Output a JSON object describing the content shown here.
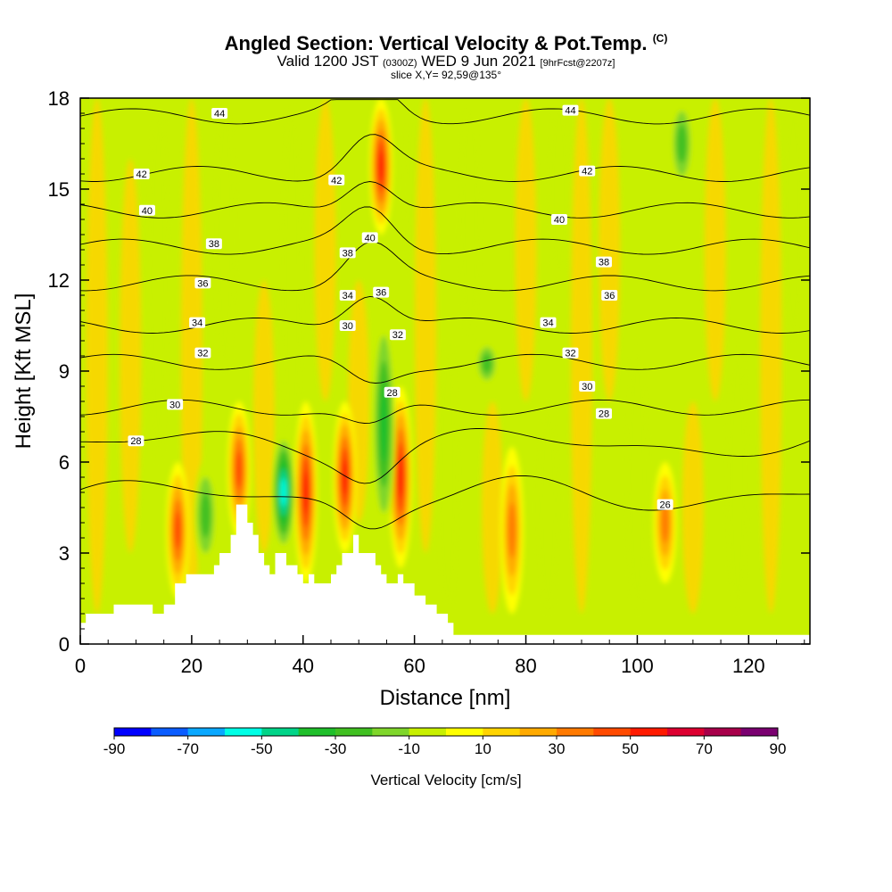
{
  "header": {
    "title_main": "Angled Section: Vertical Velocity & Pot.Temp.",
    "title_mark": "(C)",
    "valid_prefix": "Valid 1200 JST",
    "valid_utc": "(0300Z)",
    "valid_date": "WED 9 Jun 2021",
    "valid_fcst": "[9hrFcst@2207z]",
    "slice": "slice X,Y= 92,59@135°"
  },
  "chart_data": {
    "type": "heatmap",
    "xlabel": "Distance [nm]",
    "ylabel": "Height [Kft MSL]",
    "xlim": [
      0,
      131
    ],
    "ylim": [
      0,
      18
    ],
    "xticks": [
      0,
      20,
      40,
      60,
      80,
      100,
      120
    ],
    "yticks": [
      0,
      3,
      6,
      9,
      12,
      15,
      18
    ],
    "colorbar": {
      "label": "Vertical Velocity [cm/s]",
      "ticks": [
        -90,
        -70,
        -50,
        -30,
        -10,
        10,
        30,
        50,
        70,
        90
      ],
      "colors": [
        "#0000ff",
        "#0a5cff",
        "#0aa8ff",
        "#00ffe6",
        "#00d488",
        "#1fbf2a",
        "#40c020",
        "#7fd62a",
        "#c8f000",
        "#ffff00",
        "#ffd400",
        "#ffaa00",
        "#ff7a00",
        "#ff4a00",
        "#ff1a00",
        "#dd0030",
        "#a8004a",
        "#7a0070"
      ]
    },
    "background_color": "#c8f000",
    "theta_contour_levels": [
      26,
      28,
      30,
      32,
      34,
      36,
      38,
      40,
      42,
      44
    ],
    "theta_contour_labels": [
      {
        "text": "44",
        "x": 25,
        "y": 17.5
      },
      {
        "text": "44",
        "x": 88,
        "y": 17.6
      },
      {
        "text": "42",
        "x": 11,
        "y": 15.5
      },
      {
        "text": "42",
        "x": 46,
        "y": 15.3
      },
      {
        "text": "42",
        "x": 91,
        "y": 15.6
      },
      {
        "text": "40",
        "x": 12,
        "y": 14.3
      },
      {
        "text": "40",
        "x": 52,
        "y": 13.4
      },
      {
        "text": "40",
        "x": 86,
        "y": 14.0
      },
      {
        "text": "38",
        "x": 24,
        "y": 13.2
      },
      {
        "text": "38",
        "x": 48,
        "y": 12.9
      },
      {
        "text": "38",
        "x": 94,
        "y": 12.6
      },
      {
        "text": "36",
        "x": 22,
        "y": 11.9
      },
      {
        "text": "36",
        "x": 54,
        "y": 11.6
      },
      {
        "text": "36",
        "x": 95,
        "y": 11.5
      },
      {
        "text": "34",
        "x": 21,
        "y": 10.6
      },
      {
        "text": "34",
        "x": 48,
        "y": 11.5
      },
      {
        "text": "34",
        "x": 84,
        "y": 10.6
      },
      {
        "text": "32",
        "x": 22,
        "y": 9.6
      },
      {
        "text": "32",
        "x": 57,
        "y": 10.2
      },
      {
        "text": "32",
        "x": 88,
        "y": 9.6
      },
      {
        "text": "30",
        "x": 17,
        "y": 7.9
      },
      {
        "text": "30",
        "x": 48,
        "y": 10.5
      },
      {
        "text": "30",
        "x": 91,
        "y": 8.5
      },
      {
        "text": "28",
        "x": 10,
        "y": 6.7
      },
      {
        "text": "28",
        "x": 56,
        "y": 8.3
      },
      {
        "text": "28",
        "x": 94,
        "y": 7.6
      },
      {
        "text": "26",
        "x": 105,
        "y": 4.6
      }
    ],
    "updraft_cores": [
      {
        "x": 17.5,
        "y0": 1.5,
        "y1": 6.0,
        "value": 55
      },
      {
        "x": 28.5,
        "y0": 3.5,
        "y1": 8.0,
        "value": 50
      },
      {
        "x": 40.5,
        "y0": 2.0,
        "y1": 8.0,
        "value": 60
      },
      {
        "x": 47.5,
        "y0": 3.0,
        "y1": 8.0,
        "value": 60
      },
      {
        "x": 57.5,
        "y0": 2.5,
        "y1": 8.5,
        "value": 65
      },
      {
        "x": 77.5,
        "y0": 1.0,
        "y1": 6.5,
        "value": 45
      },
      {
        "x": 105,
        "y0": 2.0,
        "y1": 6.0,
        "value": 40
      },
      {
        "x": 54,
        "y0": 13.5,
        "y1": 18.0,
        "value": 60
      }
    ],
    "downdraft_cores": [
      {
        "x": 36.5,
        "y0": 3.0,
        "y1": 7.0,
        "value": -60
      },
      {
        "x": 54.5,
        "y0": 3.5,
        "y1": 11.0,
        "value": -45
      },
      {
        "x": 22.5,
        "y0": 2.5,
        "y1": 6.0,
        "value": -30
      },
      {
        "x": 73,
        "y0": 8.5,
        "y1": 10.0,
        "value": -30
      },
      {
        "x": 108,
        "y0": 15.0,
        "y1": 18.0,
        "value": -30
      }
    ],
    "terrain_profile": {
      "x": [
        0,
        1,
        1,
        6,
        6,
        13,
        13,
        15,
        15,
        17,
        17,
        19,
        19,
        24,
        24,
        25,
        25,
        27,
        27,
        28,
        28,
        30,
        30,
        31,
        31,
        32,
        32,
        33,
        33,
        34,
        34,
        35,
        35,
        37,
        37,
        39,
        39,
        40,
        40,
        41,
        41,
        42,
        42,
        45,
        45,
        46,
        46,
        47,
        47,
        49,
        49,
        50,
        50,
        53,
        53,
        54,
        54,
        55,
        55,
        57,
        57,
        58,
        58,
        60,
        60,
        62,
        62,
        64,
        64,
        66,
        66,
        67,
        67,
        70,
        70,
        71,
        71,
        131
      ],
      "y": [
        0.7,
        0.7,
        1.0,
        1.0,
        1.3,
        1.3,
        1.0,
        1.0,
        1.3,
        1.3,
        2.0,
        2.0,
        2.3,
        2.3,
        2.6,
        2.6,
        3.0,
        3.0,
        3.6,
        3.6,
        4.6,
        4.6,
        4.0,
        4.0,
        3.6,
        3.6,
        3.0,
        3.0,
        2.6,
        2.6,
        2.3,
        2.3,
        3.0,
        3.0,
        2.6,
        2.6,
        2.3,
        2.3,
        2.0,
        2.0,
        2.3,
        2.3,
        2.0,
        2.0,
        2.3,
        2.3,
        2.6,
        2.6,
        3.0,
        3.0,
        3.6,
        3.6,
        3.0,
        3.0,
        2.6,
        2.6,
        2.3,
        2.3,
        2.0,
        2.0,
        2.3,
        2.3,
        2.0,
        2.0,
        1.6,
        1.6,
        1.3,
        1.3,
        1.0,
        1.0,
        0.7,
        0.7,
        0.3,
        0.3,
        0.3,
        0.3,
        0.3,
        0.3
      ]
    }
  }
}
